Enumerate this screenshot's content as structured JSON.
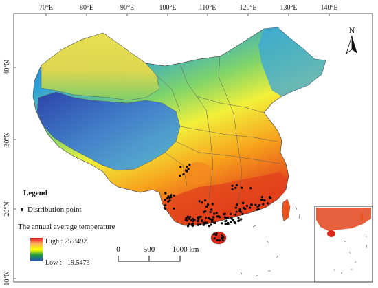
{
  "figure": {
    "longitude_labels": [
      "70°E",
      "80°E",
      "90°E",
      "100°E",
      "110°E",
      "120°E",
      "130°E",
      "140°E"
    ],
    "latitude_labels": [
      "40°N",
      "30°N",
      "20°N",
      "10°N"
    ],
    "north_arrow_label": "N"
  },
  "legend": {
    "title": "Legend",
    "point_label": "Distribution point",
    "temperature_title": "The annual average temperature",
    "high_label": "High : 25.8492",
    "low_label": "Low : - 19.5473"
  },
  "scale_bar": {
    "labels": [
      "0",
      "500",
      "1000 km"
    ]
  },
  "colors": {
    "high": "#d7191c",
    "mid_high": "#fdae61",
    "mid": "#ffff00",
    "mid_low": "#1a9641",
    "low": "#2c4fb5",
    "point": "#000000"
  }
}
